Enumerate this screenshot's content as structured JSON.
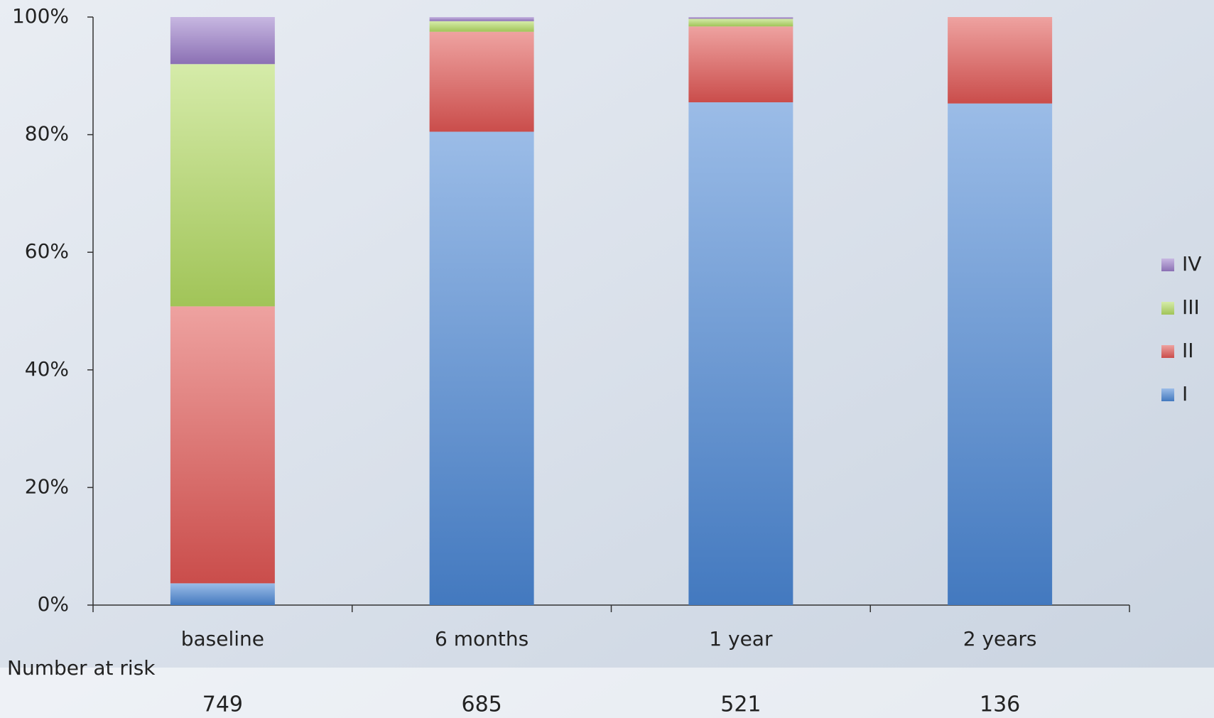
{
  "chart_data": {
    "type": "stacked_bar",
    "categories": [
      "baseline",
      "6 months",
      "1 year",
      "2 years"
    ],
    "series": [
      {
        "name": "I",
        "color": "#4a86d4",
        "values": [
          3.7,
          80.5,
          85.5,
          85.3
        ]
      },
      {
        "name": "II",
        "color": "#e05553",
        "values": [
          47.1,
          17.0,
          12.9,
          14.7
        ]
      },
      {
        "name": "III",
        "color": "#b3da62",
        "values": [
          41.2,
          1.8,
          1.3,
          0
        ]
      },
      {
        "name": "IV",
        "color": "#9a7cc8",
        "values": [
          8.0,
          0.7,
          0.3,
          0
        ]
      }
    ],
    "ylim": [
      0,
      100
    ],
    "yticks": [
      {
        "value": 0,
        "label": "0%"
      },
      {
        "value": 20,
        "label": "20%"
      },
      {
        "value": 40,
        "label": "40%"
      },
      {
        "value": 60,
        "label": "60%"
      },
      {
        "value": 80,
        "label": "80%"
      },
      {
        "value": 100,
        "label": "100%"
      }
    ],
    "legend": "right",
    "at_risk": {
      "label": "Number at risk",
      "values": [
        749,
        685,
        521,
        136
      ]
    }
  }
}
